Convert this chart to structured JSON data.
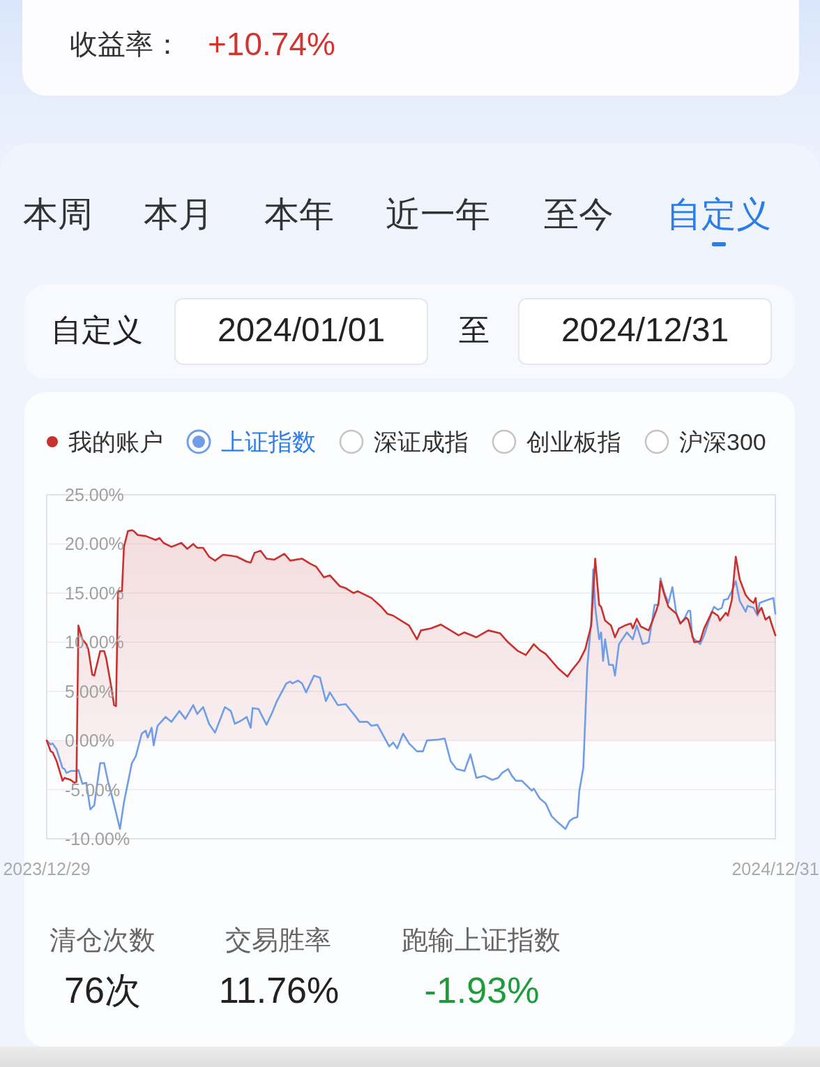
{
  "chart_data": [
    {
      "type": "other",
      "annotations": [
        "收益率：",
        "+10.74%"
      ]
    },
    {
      "type": "other",
      "annotations": [
        "本周",
        "本月",
        "本年",
        "近一年",
        "至今",
        "自定义",
        "自定义",
        "2024/01/01",
        "至",
        "2024/12/31"
      ]
    },
    {
      "type": "line",
      "legend": "top",
      "grid": "y",
      "xlim": [
        "2023-12-29",
        "2024-12-31"
      ],
      "xticks": [
        {
          "value": "2023-12-29",
          "label": "2023/12/29"
        },
        {
          "value": "2024-12-31",
          "label": "2024/12/31"
        }
      ],
      "ylim": [
        -10,
        25
      ],
      "yticks": [
        {
          "value": -10,
          "label": "-10.00%"
        },
        {
          "value": -5,
          "label": "-5.00%"
        },
        {
          "value": 0,
          "label": "0.00%"
        },
        {
          "value": 5,
          "label": "5.00%"
        },
        {
          "value": 10,
          "label": "10.00%"
        },
        {
          "value": 15,
          "label": "15.00%"
        },
        {
          "value": 20,
          "label": "20.00%"
        },
        {
          "value": 25,
          "label": "25.00%"
        }
      ],
      "annotations": [
        "深证成指",
        "创业板指",
        "沪深300"
      ],
      "series": [
        {
          "name": "我的账户",
          "type": "area",
          "color": "#c8312d",
          "x": [
            "2023-12-29",
            "2023-12-31",
            "2024-01-01",
            "2024-01-03",
            "2024-01-06",
            "2024-01-07",
            "2024-01-10",
            "2024-01-12",
            "2024-01-13",
            "2024-01-14",
            "2024-01-16",
            "2024-01-18",
            "2024-01-19",
            "2024-01-21",
            "2024-01-22",
            "2024-01-25",
            "2024-01-27",
            "2024-01-28",
            "2024-01-31",
            "2024-02-01",
            "2024-02-02",
            "2024-02-03",
            "2024-02-05",
            "2024-02-06",
            "2024-02-08",
            "2024-02-10",
            "2024-02-11",
            "2024-02-13",
            "2024-02-17",
            "2024-02-22",
            "2024-02-24",
            "2024-02-26",
            "2024-03-01",
            "2024-03-06",
            "2024-03-09",
            "2024-03-12",
            "2024-03-14",
            "2024-03-17",
            "2024-03-20",
            "2024-03-23",
            "2024-03-27",
            "2024-03-31",
            "2024-04-03",
            "2024-04-08",
            "2024-04-10",
            "2024-04-12",
            "2024-04-15",
            "2024-04-18",
            "2024-04-22",
            "2024-04-27",
            "2024-04-30",
            "2024-05-06",
            "2024-05-10",
            "2024-05-13",
            "2024-05-17",
            "2024-05-20",
            "2024-05-25",
            "2024-05-28",
            "2024-06-01",
            "2024-06-03",
            "2024-06-10",
            "2024-06-15",
            "2024-06-18",
            "2024-06-21",
            "2024-06-25",
            "2024-06-29",
            "2024-07-03",
            "2024-07-05",
            "2024-07-10",
            "2024-07-15",
            "2024-07-20",
            "2024-07-24",
            "2024-07-27",
            "2024-08-02",
            "2024-08-08",
            "2024-08-14",
            "2024-08-18",
            "2024-08-23",
            "2024-08-27",
            "2024-08-31",
            "2024-09-03",
            "2024-09-06",
            "2024-09-12",
            "2024-09-17",
            "2024-09-19",
            "2024-09-23",
            "2024-09-26",
            "2024-09-29",
            "2024-10-01",
            "2024-10-03",
            "2024-10-04",
            "2024-10-06",
            "2024-10-09",
            "2024-10-11",
            "2024-10-13",
            "2024-10-16",
            "2024-10-19",
            "2024-10-20",
            "2024-10-22",
            "2024-10-24",
            "2024-10-28",
            "2024-10-30",
            "2024-11-01",
            "2024-11-02",
            "2024-11-03",
            "2024-11-05",
            "2024-11-07",
            "2024-11-11",
            "2024-11-13",
            "2024-11-16",
            "2024-11-17",
            "2024-11-20",
            "2024-11-23",
            "2024-11-25",
            "2024-11-29",
            "2024-12-02",
            "2024-12-03",
            "2024-12-06",
            "2024-12-07",
            "2024-12-09",
            "2024-12-11",
            "2024-12-13",
            "2024-12-16",
            "2024-12-18",
            "2024-12-20",
            "2024-12-21",
            "2024-12-22",
            "2024-12-24",
            "2024-12-26",
            "2024-12-28",
            "2024-12-29",
            "2024-12-31"
          ],
          "values": [
            0,
            -1.1,
            -1.2,
            -2.1,
            -4.1,
            -3.8,
            -4.0,
            -4.3,
            -4.2,
            11.7,
            10.3,
            9.8,
            9.3,
            6.7,
            6.6,
            9.1,
            9.1,
            8.4,
            5.0,
            3.6,
            3.5,
            15.2,
            15.2,
            19.7,
            21.3,
            21.4,
            21.3,
            20.9,
            20.8,
            20.4,
            20.6,
            20.1,
            19.7,
            20.1,
            19.5,
            20.0,
            19.6,
            19.6,
            18.7,
            18.3,
            18.9,
            18.8,
            18.7,
            18.2,
            18.1,
            19.1,
            19.3,
            18.5,
            18.4,
            19.0,
            18.3,
            18.5,
            18.0,
            17.7,
            16.6,
            16.8,
            15.7,
            15.5,
            15.0,
            15.2,
            14.5,
            13.6,
            12.9,
            12.7,
            12.2,
            11.7,
            10.3,
            11.2,
            11.4,
            11.8,
            11.2,
            10.7,
            11.0,
            10.5,
            11.2,
            10.9,
            10.0,
            9.1,
            8.7,
            9.8,
            9.2,
            8.8,
            7.4,
            6.5,
            7.1,
            8.1,
            9.3,
            11.7,
            18.5,
            13.8,
            13.6,
            12.2,
            11.7,
            10.5,
            11.4,
            11.7,
            11.9,
            11.4,
            12.4,
            11.6,
            11.2,
            12.2,
            13.3,
            14.0,
            16.2,
            14.8,
            13.6,
            12.9,
            11.9,
            12.5,
            12.3,
            10.0,
            10.1,
            11.4,
            13.1,
            12.7,
            12.2,
            13.0,
            12.7,
            14.3,
            18.7,
            16.4,
            14.8,
            14.3,
            14.0,
            14.5,
            12.9,
            13.5,
            12.3,
            12.6,
            11.9,
            10.7
          ]
        },
        {
          "name": "上证指数",
          "type": "line",
          "color": "#6f9ee6",
          "x": [
            "2023-12-29",
            "2023-12-31",
            "2024-01-01",
            "2024-01-03",
            "2024-01-06",
            "2024-01-07",
            "2024-01-08",
            "2024-01-10",
            "2024-01-13",
            "2024-01-14",
            "2024-01-16",
            "2024-01-18",
            "2024-01-20",
            "2024-01-22",
            "2024-01-25",
            "2024-01-27",
            "2024-01-29",
            "2024-01-31",
            "2024-02-01",
            "2024-02-04",
            "2024-02-06",
            "2024-02-10",
            "2024-02-12",
            "2024-02-15",
            "2024-02-17",
            "2024-02-18",
            "2024-02-20",
            "2024-02-21",
            "2024-02-23",
            "2024-02-27",
            "2024-03-01",
            "2024-03-05",
            "2024-03-08",
            "2024-03-12",
            "2024-03-14",
            "2024-03-17",
            "2024-03-20",
            "2024-03-23",
            "2024-03-28",
            "2024-03-31",
            "2024-04-02",
            "2024-04-05",
            "2024-04-08",
            "2024-04-10",
            "2024-04-11",
            "2024-04-14",
            "2024-04-18",
            "2024-04-21",
            "2024-04-23",
            "2024-04-28",
            "2024-04-30",
            "2024-05-01",
            "2024-05-04",
            "2024-05-06",
            "2024-05-08",
            "2024-05-12",
            "2024-05-15",
            "2024-05-18",
            "2024-05-20",
            "2024-05-24",
            "2024-05-28",
            "2024-06-01",
            "2024-06-04",
            "2024-06-08",
            "2024-06-10",
            "2024-06-13",
            "2024-06-16",
            "2024-06-19",
            "2024-06-21",
            "2024-06-23",
            "2024-06-26",
            "2024-06-29",
            "2024-07-03",
            "2024-07-06",
            "2024-07-08",
            "2024-07-14",
            "2024-07-17",
            "2024-07-20",
            "2024-07-23",
            "2024-07-27",
            "2024-07-30",
            "2024-08-02",
            "2024-08-06",
            "2024-08-10",
            "2024-08-13",
            "2024-08-15",
            "2024-08-18",
            "2024-08-20",
            "2024-08-22",
            "2024-08-25",
            "2024-08-30",
            "2024-08-31",
            "2024-09-03",
            "2024-09-06",
            "2024-09-09",
            "2024-09-12",
            "2024-09-16",
            "2024-09-18",
            "2024-09-20",
            "2024-09-22",
            "2024-09-23",
            "2024-09-25",
            "2024-09-27",
            "2024-09-29",
            "2024-09-30",
            "2024-10-01",
            "2024-10-03",
            "2024-10-04",
            "2024-10-05",
            "2024-10-06",
            "2024-10-08",
            "2024-10-10",
            "2024-10-11",
            "2024-10-13",
            "2024-10-16",
            "2024-10-17",
            "2024-10-20",
            "2024-10-22",
            "2024-10-25",
            "2024-10-28",
            "2024-10-29",
            "2024-10-31",
            "2024-11-02",
            "2024-11-03",
            "2024-11-05",
            "2024-11-07",
            "2024-11-09",
            "2024-11-11",
            "2024-11-13",
            "2024-11-15",
            "2024-11-17",
            "2024-11-18",
            "2024-11-19",
            "2024-11-23",
            "2024-11-25",
            "2024-11-29",
            "2024-11-30",
            "2024-12-02",
            "2024-12-04",
            "2024-12-05",
            "2024-12-07",
            "2024-12-09",
            "2024-12-11",
            "2024-12-13",
            "2024-12-16",
            "2024-12-17",
            "2024-12-20",
            "2024-12-22",
            "2024-12-23",
            "2024-12-27",
            "2024-12-30",
            "2024-12-31"
          ],
          "values": [
            0,
            -0.4,
            -0.3,
            -0.9,
            -2.8,
            -2.9,
            -3.3,
            -3.1,
            -3.1,
            -3.0,
            -4.4,
            -4.3,
            -7.0,
            -6.6,
            -2.3,
            -2.3,
            -4.2,
            -5.7,
            -6.5,
            -9.0,
            -6.3,
            -2.3,
            -1.6,
            0.7,
            1.0,
            0.3,
            1.3,
            -0.5,
            1.5,
            2.4,
            1.9,
            3.0,
            2.2,
            3.6,
            2.7,
            3.4,
            1.7,
            0.8,
            3.4,
            3.0,
            1.7,
            2.0,
            2.4,
            1.3,
            3.3,
            3.2,
            1.6,
            2.9,
            3.9,
            5.8,
            6.0,
            5.8,
            6.1,
            5.8,
            4.9,
            6.6,
            6.4,
            4.0,
            4.9,
            3.6,
            3.7,
            2.7,
            1.9,
            1.9,
            1.5,
            1.6,
            0.5,
            -0.6,
            -0.2,
            -0.8,
            0.7,
            -0.3,
            -1.1,
            -1.1,
            0.0,
            0.1,
            0.2,
            -2.1,
            -2.9,
            -3.1,
            -1.4,
            -3.8,
            -3.6,
            -4.0,
            -3.8,
            -3.3,
            -2.9,
            -3.6,
            -4.1,
            -4.1,
            -5.1,
            -4.9,
            -5.9,
            -6.4,
            -7.7,
            -8.3,
            -9.0,
            -8.2,
            -7.9,
            -7.8,
            -5.1,
            -2.8,
            7.4,
            12.2,
            17.4,
            13.6,
            10.3,
            11.0,
            8.1,
            10.3,
            7.7,
            7.7,
            6.6,
            9.8,
            10.7,
            11.0,
            10.3,
            11.7,
            9.8,
            10.0,
            11.2,
            13.8,
            13.8,
            16.5,
            15.0,
            14.0,
            15.6,
            12.9,
            11.9,
            12.4,
            13.2,
            13.2,
            10.5,
            9.8,
            10.7,
            13.1,
            13.6,
            13.3,
            13.5,
            14.3,
            14.4,
            15.2,
            16.2,
            14.2,
            13.1,
            13.7,
            13.5,
            12.7,
            14.0,
            14.3,
            14.5,
            12.9
          ]
        }
      ]
    },
    {
      "type": "other",
      "annotations": [
        "清仓次数",
        "76次",
        "交易胜率",
        "11.76%",
        "跑输上证指数",
        "-1.93%"
      ]
    }
  ]
}
